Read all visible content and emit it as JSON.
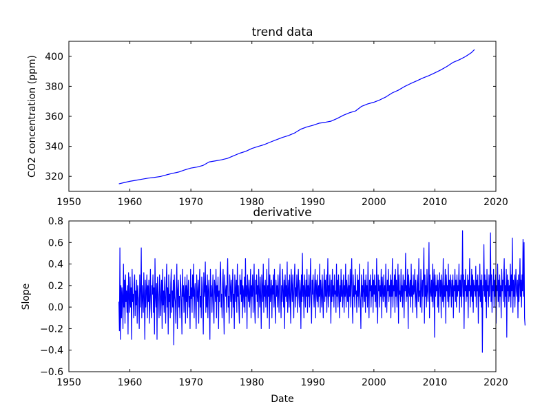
{
  "chart_data": [
    {
      "type": "line",
      "title": "trend data",
      "xlabel": "",
      "ylabel": "CO2 concentration (ppm)",
      "xlim": [
        1950,
        2020
      ],
      "ylim": [
        310,
        410
      ],
      "xticks": [
        1950,
        1960,
        1970,
        1980,
        1990,
        2000,
        2010,
        2020
      ],
      "yticks": [
        320,
        340,
        360,
        380,
        400
      ],
      "xtick_labels": [
        "1950",
        "1960",
        "1970",
        "1980",
        "1990",
        "2000",
        "2010",
        "2020"
      ],
      "ytick_labels": [
        "320",
        "340",
        "360",
        "380",
        "400"
      ],
      "grid": false,
      "color": "#0000ff",
      "series": [
        {
          "x": [
            1958.2,
            1959,
            1960,
            1961,
            1962,
            1963,
            1964,
            1965,
            1966,
            1967,
            1968,
            1969,
            1970,
            1971,
            1972,
            1973,
            1974,
            1975,
            1976,
            1977,
            1978,
            1979,
            1980,
            1981,
            1982,
            1983,
            1984,
            1985,
            1986,
            1987,
            1988,
            1989,
            1990,
            1991,
            1992,
            1993,
            1994,
            1995,
            1996,
            1997,
            1998,
            1999,
            2000,
            2001,
            2002,
            2003,
            2004,
            2005,
            2006,
            2007,
            2008,
            2009,
            2010,
            2011,
            2012,
            2013,
            2014,
            2015,
            2016,
            2016.5
          ],
          "values": [
            315.0,
            315.8,
            316.7,
            317.4,
            318.1,
            318.8,
            319.3,
            319.9,
            321.0,
            322.0,
            322.9,
            324.3,
            325.5,
            326.2,
            327.3,
            329.6,
            330.3,
            331.0,
            332.0,
            333.7,
            335.4,
            336.7,
            338.6,
            339.9,
            341.1,
            342.8,
            344.4,
            345.9,
            347.2,
            348.9,
            351.4,
            352.9,
            354.0,
            355.4,
            356.0,
            356.8,
            358.6,
            360.7,
            362.4,
            363.6,
            366.7,
            368.3,
            369.4,
            371.0,
            373.0,
            375.6,
            377.4,
            379.8,
            381.8,
            383.6,
            385.5,
            387.1,
            389.0,
            391.0,
            393.3,
            396.0,
            397.7,
            399.8,
            402.5,
            404.5
          ]
        }
      ]
    },
    {
      "type": "line",
      "title": "derivative",
      "xlabel": "Date",
      "ylabel": "Slope",
      "xlim": [
        1950,
        2020
      ],
      "ylim": [
        -0.6,
        0.8
      ],
      "xticks": [
        1950,
        1960,
        1970,
        1980,
        1990,
        2000,
        2010,
        2020
      ],
      "yticks": [
        -0.6,
        -0.4,
        -0.2,
        0.0,
        0.2,
        0.4,
        0.6,
        0.8
      ],
      "xtick_labels": [
        "1950",
        "1960",
        "1970",
        "1980",
        "1990",
        "2000",
        "2010",
        "2020"
      ],
      "ytick_labels": [
        "−0.6",
        "−0.4",
        "−0.2",
        "0.0",
        "0.2",
        "0.4",
        "0.6",
        "0.8"
      ],
      "grid": false,
      "color": "#0000ff",
      "series": [
        {
          "x_start": 1958.2,
          "x_step": 0.083333,
          "values": [
            0.05,
            -0.22,
            0.55,
            -0.3,
            0.2,
            -0.1,
            0.18,
            0.1,
            -0.2,
            0.4,
            0.0,
            0.25,
            -0.15,
            0.3,
            0.05,
            0.15,
            -0.05,
            0.2,
            -0.25,
            0.32,
            0.1,
            -0.05,
            0.28,
            0.0,
            0.18,
            -0.3,
            0.35,
            0.05,
            0.12,
            -0.1,
            0.22,
            0.3,
            -0.08,
            0.15,
            0.02,
            0.25,
            -0.15,
            0.2,
            0.1,
            0.05,
            -0.2,
            0.3,
            0.0,
            0.15,
            0.55,
            -0.1,
            0.2,
            0.08,
            -0.05,
            0.32,
            0.1,
            -0.3,
            0.25,
            0.0,
            0.15,
            0.3,
            -0.1,
            0.2,
            0.05,
            0.25,
            -0.15,
            0.1,
            0.35,
            0.0,
            -0.1,
            0.2,
            0.12,
            0.3,
            -0.05,
            0.18,
            -0.25,
            0.45,
            0.1,
            0.0,
            0.22,
            -0.3,
            0.28,
            0.15,
            0.05,
            -0.1,
            0.3,
            0.2,
            -0.08,
            0.1,
            0.25,
            -0.2,
            0.35,
            0.02,
            0.15,
            -0.05,
            0.28,
            0.1,
            -0.15,
            0.2,
            0.4,
            0.0,
            0.18,
            -0.25,
            0.3,
            0.05,
            0.12,
            -0.1,
            0.22,
            0.35,
            -0.05,
            0.15,
            0.0,
            0.25,
            -0.35,
            0.3,
            0.1,
            0.05,
            -0.15,
            0.2,
            0.4,
            -0.2,
            0.15,
            0.25,
            0.0,
            0.1,
            -0.1,
            0.3,
            0.18,
            0.05,
            -0.25,
            0.35,
            0.1,
            0.2,
            -0.05,
            0.12,
            0.28,
            -0.15,
            0.2,
            0.05,
            0.3,
            -0.1,
            0.15,
            0.25,
            0.0,
            0.1,
            -0.2,
            0.35,
            0.08,
            0.18,
            -0.05,
            0.3,
            0.1,
            0.4,
            -0.1,
            0.15,
            0.22,
            0.0,
            -0.2,
            0.3,
            0.12,
            0.05,
            0.25,
            -0.15,
            0.18,
            0.35,
            0.0,
            0.1,
            -0.1,
            0.28,
            0.2,
            0.05,
            -0.25,
            0.32,
            0.1,
            0.15,
            0.42,
            -0.05,
            0.2,
            0.0,
            0.3,
            -0.1,
            0.15,
            0.25,
            0.05,
            -0.3,
            0.35,
            0.1,
            0.2,
            -0.05,
            0.12,
            0.3,
            0.0,
            -0.15,
            0.25,
            0.18,
            0.05,
            0.35,
            -0.1,
            0.2,
            0.1,
            0.28,
            -0.2,
            0.15,
            0.05,
            0.3,
            0.42,
            0.0,
            0.12,
            -0.1,
            0.22,
            0.35,
            0.05,
            -0.25,
            0.3,
            0.15,
            0.1,
            0.2,
            -0.05,
            0.28,
            0.45,
            0.0,
            0.1,
            -0.15,
            0.3,
            0.2,
            0.05,
            0.25,
            -0.1,
            0.15,
            0.35,
            0.0,
            0.12,
            -0.2,
            0.3,
            0.18,
            0.05,
            0.25,
            -0.05,
            0.4,
            0.1,
            0.2,
            0.0,
            -0.15,
            0.3,
            0.12,
            0.25,
            0.05,
            0.35,
            -0.1,
            0.2,
            0.15,
            0.0,
            0.28,
            -0.05,
            0.45,
            0.1,
            0.2,
            -0.2,
            0.3,
            0.15,
            0.05,
            0.25,
            0.0,
            0.12,
            0.35,
            -0.1,
            0.2,
            0.1,
            0.3,
            -0.05,
            0.18,
            0.4,
            0.0,
            -0.15,
            0.25,
            0.12,
            0.3,
            0.05,
            0.2,
            -0.1,
            0.35,
            0.15,
            0.0,
            0.28,
            0.1,
            -0.2,
            0.3,
            0.18,
            0.05,
            0.4,
            -0.05,
            0.2,
            0.1,
            0.25,
            0.0,
            0.15,
            0.35,
            -0.1,
            0.2,
            0.1,
            0.45,
            -0.2,
            0.3,
            0.05,
            0.15,
            0.25,
            -0.1,
            0.2,
            0.12,
            0.3,
            0.0,
            0.35,
            0.05,
            -0.15,
            0.25,
            0.1,
            0.2,
            0.0,
            0.3,
            0.15,
            -0.05,
            0.28,
            0.4,
            0.1,
            -0.1,
            0.2,
            0.05,
            0.35,
            0.15,
            0.0,
            0.25,
            -0.2,
            0.3,
            0.1,
            0.2,
            0.05,
            0.42,
            -0.05,
            0.15,
            0.25,
            0.0,
            0.3,
            0.1,
            -0.15,
            0.35,
            0.2,
            0.05,
            0.3,
            0.12,
            -0.1,
            0.25,
            0.4,
            0.0,
            0.18,
            0.1,
            0.3,
            -0.05,
            0.2,
            0.35,
            0.1,
            0.0,
            0.25,
            0.15,
            -0.2,
            0.3,
            0.05,
            0.5,
            0.1,
            0.2,
            -0.1,
            0.3,
            0.15,
            0.0,
            0.25,
            0.1,
            0.35,
            -0.05,
            0.2,
            0.1,
            0.3,
            0.0,
            0.15,
            0.45,
            0.05,
            -0.15,
            0.25,
            0.12,
            0.3,
            0.1,
            0.0,
            0.2,
            0.35,
            -0.1,
            0.25,
            0.15,
            0.05,
            0.3,
            0.0,
            0.2,
            0.1,
            0.4,
            -0.05,
            0.25,
            0.15,
            0.0,
            0.3,
            0.1,
            -0.1,
            0.2,
            0.35,
            0.05,
            0.25,
            0.1,
            0.3,
            -0.05,
            0.15,
            0.45,
            0.0,
            0.2,
            0.1,
            0.3,
            0.15,
            -0.15,
            0.25,
            0.05,
            0.35,
            0.1,
            0.2,
            0.0,
            0.3,
            0.12,
            0.15,
            -0.05,
            0.4,
            0.1,
            0.25,
            0.0,
            0.3,
            0.15,
            -0.1,
            0.2,
            0.05,
            0.35,
            0.1,
            0.25,
            0.0,
            0.15,
            0.3,
            -0.05,
            0.2,
            0.1,
            0.4,
            0.0,
            0.25,
            0.15,
            0.05,
            0.3,
            -0.1,
            0.2,
            0.1,
            0.35,
            0.0,
            0.25,
            0.45,
            0.05,
            -0.15,
            0.3,
            0.1,
            0.2,
            0.0,
            0.35,
            0.12,
            0.15,
            -0.05,
            0.3,
            0.1,
            0.25,
            0.0,
            0.4,
            0.15,
            0.05,
            -0.2,
            0.3,
            0.1,
            0.2,
            0.0,
            0.35,
            0.15,
            0.05,
            0.25,
            -0.05,
            0.3,
            0.1,
            0.2,
            0.0,
            0.42,
            0.1,
            -0.1,
            0.25,
            0.15,
            0.3,
            0.0,
            0.2,
            0.1,
            0.35,
            -0.05,
            0.25,
            0.12,
            0.3,
            0.05,
            0.2,
            0.0,
            0.45,
            0.1,
            -0.15,
            0.3,
            0.15,
            0.25,
            0.0,
            0.2,
            0.1,
            0.35,
            -0.1,
            0.28,
            0.15,
            0.05,
            0.3,
            0.1,
            0.2,
            0.0,
            0.4,
            0.12,
            -0.05,
            0.25,
            0.15,
            0.35,
            0.05,
            0.2,
            0.1,
            0.3,
            -0.1,
            0.25,
            0.1,
            0.45,
            0.0,
            0.2,
            0.15,
            0.3,
            -0.05,
            0.35,
            0.1,
            0.25,
            0.0,
            0.2,
            0.4,
            -0.15,
            0.3,
            0.12,
            0.15,
            0.05,
            0.35,
            0.1,
            0.2,
            0.0,
            0.3,
            0.2,
            -0.1,
            0.25,
            0.15,
            0.5,
            0.05,
            0.2,
            0.1,
            0.35,
            -0.2,
            0.3,
            0.15,
            0.1,
            0.25,
            0.0,
            0.4,
            0.1,
            0.2,
            -0.05,
            0.3,
            0.12,
            0.15,
            0.35,
            0.0,
            0.25,
            0.1,
            -0.1,
            0.3,
            0.2,
            0.05,
            0.45,
            0.1,
            0.15,
            0.0,
            0.35,
            0.2,
            -0.05,
            0.25,
            0.1,
            0.3,
            0.55,
            -0.15,
            0.3,
            0.1,
            0.2,
            0.0,
            0.35,
            0.15,
            0.05,
            0.25,
            0.6,
            -0.1,
            0.3,
            0.15,
            0.1,
            0.25,
            0.05,
            0.4,
            0.0,
            0.2,
            0.35,
            -0.28,
            0.3,
            0.1,
            0.2,
            0.15,
            0.3,
            0.0,
            0.25,
            -0.05,
            0.2,
            0.32,
            0.1,
            0.25,
            -0.1,
            0.3,
            0.15,
            0.05,
            0.45,
            0.0,
            0.2,
            0.1,
            0.35,
            -0.15,
            0.3,
            0.15,
            0.2,
            0.05,
            0.4,
            0.0,
            0.25,
            0.1,
            0.3,
            0.2,
            0.0,
            0.25,
            0.1,
            0.3,
            -0.1,
            0.2,
            0.15,
            0.35,
            0.05,
            0.25,
            0.0,
            0.3,
            0.1,
            0.2,
            0.15,
            0.4,
            -0.05,
            0.25,
            0.1,
            0.3,
            0.0,
            0.2,
            0.71,
            0.1,
            0.3,
            -0.2,
            0.25,
            0.15,
            0.35,
            0.05,
            0.2,
            0.1,
            0.3,
            -0.1,
            0.25,
            0.15,
            0.45,
            0.0,
            0.2,
            0.1,
            0.35,
            0.05,
            0.3,
            -0.05,
            0.25,
            0.15,
            0.2,
            0.1,
            0.38,
            0.0,
            0.25,
            0.15,
            0.3,
            -0.15,
            0.2,
            0.1,
            0.4,
            0.05,
            0.25,
            0.0,
            0.3,
            -0.42,
            0.2,
            0.15,
            0.58,
            0.1,
            0.3,
            0.05,
            0.25,
            -0.1,
            0.35,
            0.15,
            0.2,
            0.0,
            0.3,
            0.1,
            0.25,
            0.69,
            0.05,
            0.3,
            -0.05,
            0.2,
            0.15,
            0.35,
            0.0,
            0.25,
            0.1,
            0.3,
            -0.15,
            0.2,
            0.15,
            0.4,
            0.05,
            0.25,
            0.0,
            0.3,
            0.1,
            0.2,
            -0.1,
            0.35,
            0.15,
            0.25,
            0.05,
            0.3,
            0.45,
            0.0,
            0.2,
            0.1,
            0.35,
            -0.28,
            0.3,
            0.15,
            0.25,
            0.05,
            0.2,
            0.1,
            0.4,
            0.0,
            0.3,
            0.15,
            0.64,
            -0.05,
            0.25,
            0.1,
            0.3,
            0.0,
            0.2,
            0.35,
            0.15,
            0.1,
            0.25,
            -0.1,
            0.3,
            0.05,
            0.2,
            0.45,
            0.1,
            0.25,
            0.0,
            0.3,
            0.15,
            0.63,
            0.1,
            0.6,
            -0.1,
            -0.17
          ]
        }
      ]
    }
  ]
}
